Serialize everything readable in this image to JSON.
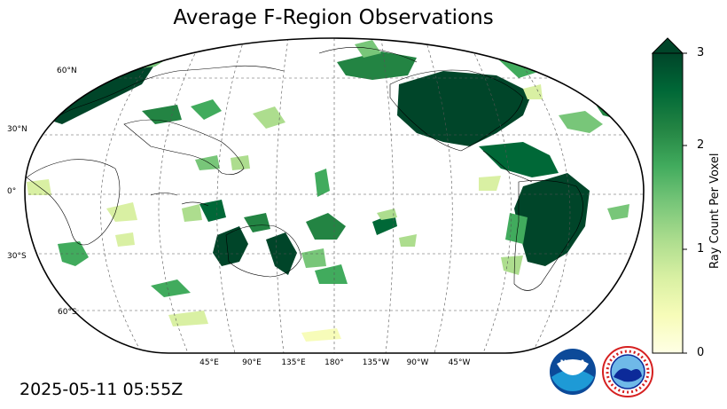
{
  "title": "Average F-Region Observations",
  "latitude_labels": [
    "60°N",
    "30°N",
    "0°",
    "30°S",
    "60°S"
  ],
  "longitude_labels": [
    "45°E",
    "90°E",
    "135°E",
    "180°",
    "135°W",
    "90°W",
    "45°W"
  ],
  "colorbar": {
    "label": "Ray Count Per Voxel",
    "ticks": [
      "0",
      "1",
      "2",
      "3"
    ],
    "min": 0,
    "max": 3,
    "extend": "max",
    "colormap": "YlGn",
    "colors": [
      "#ffffe5",
      "#f7fcb9",
      "#d9f0a3",
      "#addd8e",
      "#78c679",
      "#41ab5d",
      "#238443",
      "#006837",
      "#004529"
    ]
  },
  "timestamp": "2025-05-11 05:55Z",
  "logos": [
    "noaa-logo",
    "national-weather-service-logo"
  ],
  "logo_text": {
    "noaa": "NOAA",
    "nws": "NATIONAL WEATHER SERVICE"
  }
}
